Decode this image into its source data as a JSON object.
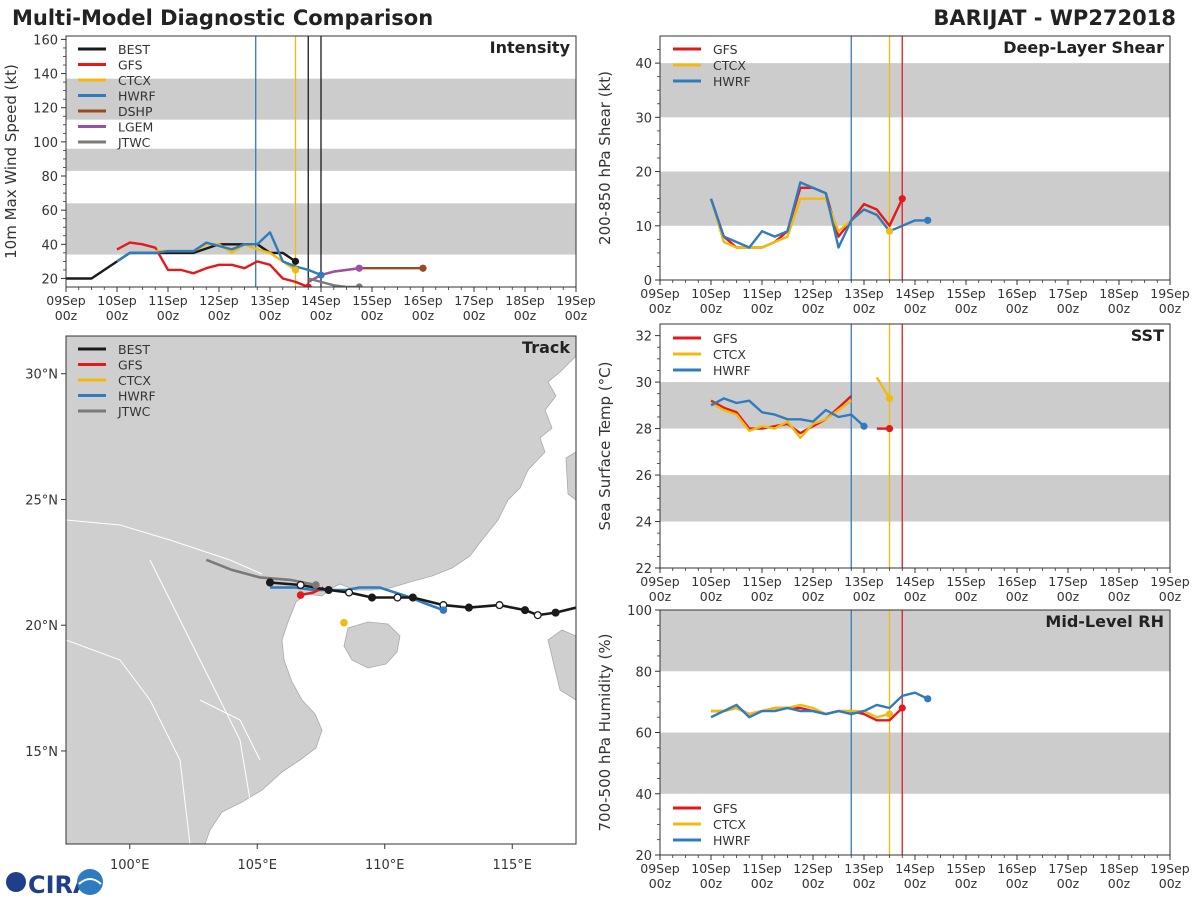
{
  "header": {
    "title": "Multi-Model Diagnostic Comparison",
    "storm": "BARIJAT - WP272018"
  },
  "logo": {
    "text": "CIRA"
  },
  "colors": {
    "BEST": "#1a1a1a",
    "GFS": "#e31a1c",
    "CTCX": "#f2b90f",
    "HWRF": "#2f7bbf",
    "DSHP": "#9a4a22",
    "LGEM": "#9b4fa8",
    "JTWC": "#7a7a7a",
    "land": "#cfcfcf",
    "band": "#cccccc"
  },
  "time_axis": {
    "tick_days": [
      "09Sep",
      "10Sep",
      "11Sep",
      "12Sep",
      "13Sep",
      "14Sep",
      "15Sep",
      "16Sep",
      "17Sep",
      "18Sep",
      "19Sep"
    ],
    "tick_hour": "00z"
  },
  "chart_data": [
    {
      "id": "intensity",
      "type": "line",
      "title": "Intensity",
      "ylabel": "10m Max Wind Speed (kt)",
      "xlabel": "",
      "xlim": [
        0,
        10
      ],
      "ylim": [
        15,
        162
      ],
      "yticks": [
        20,
        40,
        60,
        80,
        100,
        120,
        140,
        160
      ],
      "bands": [
        [
          34,
          64
        ],
        [
          83,
          96
        ],
        [
          113,
          137
        ]
      ],
      "vlines": [
        {
          "x": 3.72,
          "color": "HWRF"
        },
        {
          "x": 4.5,
          "color": "CTCX"
        },
        {
          "x": 4.75,
          "color": "BEST"
        },
        {
          "x": 5.0,
          "color": "BEST"
        }
      ],
      "legend": [
        "BEST",
        "GFS",
        "CTCX",
        "HWRF",
        "DSHP",
        "LGEM",
        "JTWC"
      ],
      "series": [
        {
          "name": "BEST",
          "x": [
            0,
            0.5,
            1.25,
            1.5,
            2,
            2.5,
            3,
            3.25,
            3.5,
            3.75,
            4,
            4.25,
            4.5
          ],
          "y": [
            20,
            20,
            35,
            35,
            35,
            35,
            40,
            40,
            40,
            40,
            35,
            35,
            30
          ]
        },
        {
          "name": "GFS",
          "x": [
            1,
            1.25,
            1.5,
            1.75,
            2,
            2.25,
            2.5,
            2.75,
            3,
            3.25,
            3.5,
            3.75,
            4,
            4.25,
            4.5,
            4.75
          ],
          "y": [
            37,
            41,
            40,
            38,
            25,
            25,
            23,
            26,
            28,
            28,
            26,
            30,
            28,
            20,
            18,
            15
          ]
        },
        {
          "name": "CTCX",
          "x": [
            1.75,
            2,
            2.25,
            2.5,
            2.75,
            3,
            3.25,
            3.5,
            3.75,
            4,
            4.25,
            4.5
          ],
          "y": [
            36,
            36,
            36,
            36,
            40,
            40,
            35,
            40,
            37,
            35,
            30,
            25
          ]
        },
        {
          "name": "HWRF",
          "x": [
            1,
            1.25,
            1.5,
            1.75,
            2,
            2.25,
            2.5,
            2.75,
            3,
            3.25,
            3.5,
            3.75,
            4,
            4.25,
            4.5,
            4.75,
            5
          ],
          "y": [
            30,
            35,
            35,
            35,
            36,
            36,
            36,
            41,
            39,
            37,
            40,
            40,
            47,
            30,
            27,
            25,
            22
          ]
        },
        {
          "name": "DSHP",
          "x": [
            4.75,
            5,
            5.25,
            5.5,
            5.75,
            6,
            6.25,
            6.5,
            6.75,
            7
          ],
          "y": [
            18,
            22,
            24,
            25,
            26,
            26,
            26,
            26,
            26,
            26
          ]
        },
        {
          "name": "LGEM",
          "x": [
            4.75,
            5,
            5.25,
            5.5,
            5.75
          ],
          "y": [
            18,
            22,
            24,
            25,
            26
          ]
        },
        {
          "name": "JTWC",
          "x": [
            4.75,
            5,
            5.25,
            5.5,
            5.75
          ],
          "y": [
            20,
            18,
            16,
            15,
            15
          ]
        }
      ]
    },
    {
      "id": "shear",
      "type": "line",
      "title": "Deep-Layer Shear",
      "ylabel": "200-850 hPa Shear (kt)",
      "xlabel": "",
      "xlim": [
        0,
        10
      ],
      "ylim": [
        0,
        45
      ],
      "yticks": [
        0,
        10,
        20,
        30,
        40
      ],
      "bands": [
        [
          10,
          20
        ],
        [
          30,
          40
        ]
      ],
      "vlines": [
        {
          "x": 3.75,
          "color": "HWRF"
        },
        {
          "x": 4.5,
          "color": "CTCX"
        },
        {
          "x": 4.75,
          "color": "GFS"
        }
      ],
      "legend": [
        "GFS",
        "CTCX",
        "HWRF"
      ],
      "series": [
        {
          "name": "GFS",
          "x": [
            1,
            1.25,
            1.5,
            1.75,
            2,
            2.25,
            2.5,
            2.75,
            3,
            3.25,
            3.5,
            3.75,
            4,
            4.25,
            4.5,
            4.75
          ],
          "y": [
            15,
            8,
            6,
            6,
            6,
            7,
            9,
            17,
            17,
            16,
            8,
            11,
            14,
            13,
            10,
            15
          ]
        },
        {
          "name": "CTCX",
          "x": [
            1,
            1.25,
            1.5,
            1.75,
            2,
            2.25,
            2.5,
            2.75,
            3,
            3.25,
            3.5,
            3.75,
            4,
            4.25,
            4.5
          ],
          "y": [
            15,
            7,
            6,
            6,
            6,
            7,
            8,
            15,
            15,
            15,
            9,
            11,
            13,
            12,
            9
          ]
        },
        {
          "name": "HWRF",
          "x": [
            1,
            1.25,
            1.5,
            1.75,
            2,
            2.25,
            2.5,
            2.75,
            3,
            3.25,
            3.5,
            3.75,
            4,
            4.25,
            4.5,
            4.75,
            5,
            5.25
          ],
          "y": [
            15,
            8,
            7,
            6,
            9,
            8,
            9,
            18,
            17,
            16,
            6,
            11,
            13,
            12,
            9,
            10,
            11,
            11
          ]
        }
      ]
    },
    {
      "id": "sst",
      "type": "line",
      "title": "SST",
      "ylabel": "Sea Surface Temp (°C)",
      "xlabel": "",
      "xlim": [
        0,
        10
      ],
      "ylim": [
        22,
        32.5
      ],
      "yticks": [
        22,
        24,
        26,
        28,
        30,
        32
      ],
      "bands": [
        [
          24,
          26
        ],
        [
          28,
          30
        ]
      ],
      "vlines": [
        {
          "x": 3.75,
          "color": "HWRF"
        },
        {
          "x": 4.5,
          "color": "CTCX"
        },
        {
          "x": 4.75,
          "color": "GFS"
        }
      ],
      "legend": [
        "GFS",
        "CTCX",
        "HWRF"
      ],
      "series": [
        {
          "name": "GFS",
          "x": [
            1,
            1.25,
            1.5,
            1.75,
            2,
            2.25,
            2.5,
            2.75,
            3,
            3.25,
            3.5,
            3.75
          ],
          "y": [
            29.2,
            28.9,
            28.7,
            28.0,
            28.0,
            28.1,
            28.2,
            27.8,
            28.1,
            28.4,
            28.9,
            29.4
          ]
        },
        {
          "name": "GFS",
          "x": [
            4.25,
            4.5
          ],
          "y": [
            28.0,
            28.0
          ]
        },
        {
          "name": "CTCX",
          "x": [
            1,
            1.25,
            1.5,
            1.75,
            2,
            2.25,
            2.5,
            2.75,
            3,
            3.25,
            3.5,
            3.75
          ],
          "y": [
            29.1,
            28.8,
            28.6,
            27.9,
            28.1,
            28.0,
            28.3,
            27.6,
            28.2,
            28.4,
            28.8,
            29.2
          ]
        },
        {
          "name": "CTCX",
          "x": [
            4.25,
            4.5
          ],
          "y": [
            30.2,
            29.3
          ]
        },
        {
          "name": "HWRF",
          "x": [
            1,
            1.25,
            1.5,
            1.75,
            2,
            2.25,
            2.5,
            2.75,
            3,
            3.25,
            3.5,
            3.75,
            4
          ],
          "y": [
            29.0,
            29.3,
            29.1,
            29.2,
            28.7,
            28.6,
            28.4,
            28.4,
            28.3,
            28.8,
            28.5,
            28.6,
            28.1
          ]
        }
      ]
    },
    {
      "id": "rh",
      "type": "line",
      "title": "Mid-Level RH",
      "ylabel": "700-500 hPa Humidity (%)",
      "xlabel": "",
      "xlim": [
        0,
        10
      ],
      "ylim": [
        20,
        100
      ],
      "yticks": [
        20,
        40,
        60,
        80,
        100
      ],
      "bands": [
        [
          40,
          60
        ],
        [
          80,
          100
        ]
      ],
      "vlines": [
        {
          "x": 3.75,
          "color": "HWRF"
        },
        {
          "x": 4.5,
          "color": "CTCX"
        },
        {
          "x": 4.75,
          "color": "GFS"
        }
      ],
      "legend": [
        "GFS",
        "CTCX",
        "HWRF"
      ],
      "series": [
        {
          "name": "GFS",
          "x": [
            1,
            1.25,
            1.5,
            1.75,
            2,
            2.25,
            2.5,
            2.75,
            3,
            3.25,
            3.5,
            3.75,
            4,
            4.25,
            4.5,
            4.75
          ],
          "y": [
            67,
            67,
            68,
            66,
            67,
            68,
            68,
            68,
            67,
            66,
            67,
            67,
            66,
            64,
            64,
            68
          ]
        },
        {
          "name": "CTCX",
          "x": [
            1,
            1.25,
            1.5,
            1.75,
            2,
            2.25,
            2.5,
            2.75,
            3,
            3.25,
            3.5,
            3.75,
            4,
            4.25,
            4.5
          ],
          "y": [
            67,
            67,
            68,
            66,
            67,
            68,
            68,
            69,
            68,
            66,
            67,
            67,
            67,
            65,
            66
          ]
        },
        {
          "name": "HWRF",
          "x": [
            1,
            1.25,
            1.5,
            1.75,
            2,
            2.25,
            2.5,
            2.75,
            3,
            3.25,
            3.5,
            3.75,
            4,
            4.25,
            4.5,
            4.75,
            5,
            5.25
          ],
          "y": [
            65,
            67,
            69,
            65,
            67,
            67,
            68,
            67,
            67,
            66,
            67,
            66,
            67,
            69,
            68,
            72,
            73,
            71
          ]
        }
      ]
    },
    {
      "id": "track",
      "type": "scatter",
      "title": "Track",
      "xlabel": "",
      "ylabel": "",
      "xlim": [
        97.5,
        117.5
      ],
      "ylim": [
        11.3,
        31.5
      ],
      "xticks": [
        100,
        105,
        110,
        115
      ],
      "xtick_labels": [
        "100°E",
        "105°E",
        "110°E",
        "115°E"
      ],
      "yticks": [
        15,
        20,
        25,
        30
      ],
      "ytick_labels": [
        "15°N",
        "20°N",
        "25°N",
        "30°N"
      ],
      "legend": [
        "BEST",
        "GFS",
        "CTCX",
        "HWRF",
        "JTWC"
      ],
      "series": [
        {
          "name": "BEST",
          "lon": [
            117.5,
            116.7,
            116.0,
            115.5,
            114.5,
            113.3,
            112.3,
            111.1,
            110.5,
            109.5,
            108.6,
            107.8,
            106.7,
            105.5
          ],
          "lat": [
            20.7,
            20.5,
            20.4,
            20.6,
            20.8,
            20.7,
            20.8,
            21.1,
            21.1,
            21.1,
            21.3,
            21.4,
            21.6,
            21.7
          ]
        },
        {
          "name": "GFS",
          "lon": [
            107.6,
            107.2,
            106.7
          ],
          "lat": [
            21.5,
            21.3,
            21.2
          ]
        },
        {
          "name": "CTCX",
          "lon": [
            108.4
          ],
          "lat": [
            20.1
          ]
        },
        {
          "name": "HWRF",
          "lon": [
            112.3,
            111.5,
            111.0,
            110.4,
            109.8,
            109.0,
            108.5,
            108.0,
            107.2,
            106.5,
            105.5
          ],
          "lat": [
            20.6,
            20.9,
            21.1,
            21.3,
            21.5,
            21.5,
            21.4,
            21.4,
            21.4,
            21.5,
            21.5
          ]
        },
        {
          "name": "JTWC",
          "lon": [
            107.3,
            106.3,
            105.1,
            104.0,
            103.0
          ],
          "lat": [
            21.6,
            21.8,
            21.9,
            22.2,
            22.6
          ]
        }
      ]
    }
  ]
}
